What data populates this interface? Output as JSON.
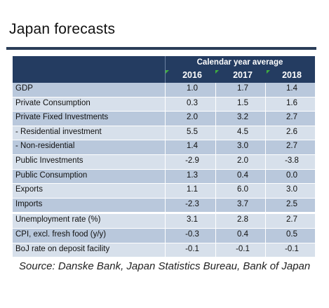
{
  "title": "Japan forecasts",
  "header": {
    "caption": "Calendar year average",
    "years": [
      "2016",
      "2017",
      "2018"
    ]
  },
  "rows": [
    {
      "label": "GDP",
      "values": [
        "1.0",
        "1.7",
        "1.4"
      ]
    },
    {
      "label": "Private Consumption",
      "values": [
        "0.3",
        "1.5",
        "1.6"
      ]
    },
    {
      "label": "Private Fixed Investments",
      "values": [
        "2.0",
        "3.2",
        "2.7"
      ]
    },
    {
      "label": "- Residential investment",
      "values": [
        "5.5",
        "4.5",
        "2.6"
      ]
    },
    {
      "label": "- Non-residential",
      "values": [
        "1.4",
        "3.0",
        "2.7"
      ]
    },
    {
      "label": "Public Investments",
      "values": [
        "-2.9",
        "2.0",
        "-3.8"
      ]
    },
    {
      "label": "Public Consumption",
      "values": [
        "1.3",
        "0.4",
        "0.0"
      ]
    },
    {
      "label": "Exports",
      "values": [
        "1.1",
        "6.0",
        "3.0"
      ]
    },
    {
      "label": "Imports",
      "values": [
        "-2.3",
        "3.7",
        "2.5"
      ]
    },
    {
      "label": "Unemployment rate (%)",
      "values": [
        "3.1",
        "2.8",
        "2.7"
      ]
    },
    {
      "label": "CPI, excl. fresh food (y/y)",
      "values": [
        "-0.3",
        "0.4",
        "0.5"
      ]
    },
    {
      "label": "BoJ rate on deposit facility",
      "values": [
        "-0.1",
        "-0.1",
        "-0.1"
      ]
    }
  ],
  "source": "Source: Danske Bank,  Japan Statistics Bureau, Bank of Japan",
  "colors": {
    "header": "#243c61",
    "row_dark": "#b9c8dc",
    "row_light": "#d7e0eb",
    "accent": "#3fae3f"
  }
}
